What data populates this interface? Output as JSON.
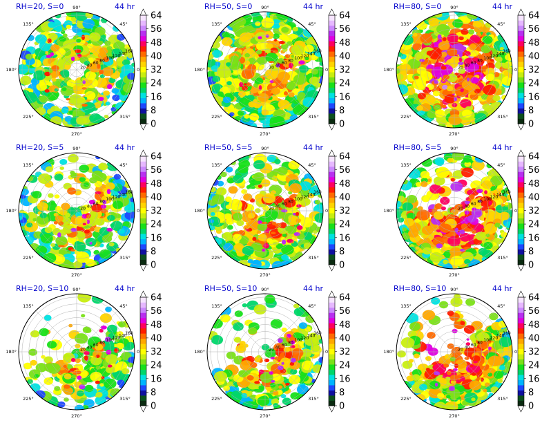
{
  "colorbar": {
    "ticks": [
      "0",
      "8",
      "16",
      "24",
      "32",
      "40",
      "48",
      "56",
      "64"
    ],
    "colors": [
      "#0a2a10",
      "#0b4f1e",
      "#1010a0",
      "#1e48ff",
      "#00b4ff",
      "#00e2e0",
      "#00d66a",
      "#18e01a",
      "#7ae018",
      "#c8ee10",
      "#ffff00",
      "#ffd400",
      "#ffa800",
      "#ff6a00",
      "#ff1e00",
      "#ff0060",
      "#e000e0",
      "#b830f0",
      "#cc88ff",
      "#e6b8ff",
      "#f6e4ff"
    ]
  },
  "axes": {
    "angle_labels": [
      "90°",
      "45°",
      "0°",
      "315°",
      "270°",
      "225°",
      "180°",
      "135°"
    ],
    "radial_labels": [
      "20",
      "40",
      "60",
      "80",
      "100",
      "120",
      "140",
      "160"
    ]
  },
  "chart_data": [
    {
      "type": "heatmap",
      "title": "RH=20, S=0",
      "time": "44 hr",
      "intensity": 0.45,
      "coverage": 0.75,
      "eye": 0.2
    },
    {
      "type": "heatmap",
      "title": "RH=50, S=0",
      "time": "44 hr",
      "intensity": 0.55,
      "coverage": 0.98,
      "eye": 0.12
    },
    {
      "type": "heatmap",
      "title": "RH=80, S=0",
      "time": "44 hr",
      "intensity": 0.8,
      "coverage": 0.97,
      "eye": 0.1
    },
    {
      "type": "heatmap",
      "title": "RH=20, S=5",
      "time": "44 hr",
      "intensity": 0.5,
      "coverage": 0.45
    },
    {
      "type": "heatmap",
      "title": "RH=50, S=5",
      "time": "44 hr",
      "intensity": 0.6,
      "coverage": 0.65
    },
    {
      "type": "heatmap",
      "title": "RH=80, S=5",
      "time": "44 hr",
      "intensity": 0.75,
      "coverage": 0.8
    },
    {
      "type": "heatmap",
      "title": "RH=20, S=10",
      "time": "44 hr",
      "intensity": 0.5,
      "coverage": 0.28
    },
    {
      "type": "heatmap",
      "title": "RH=50, S=10",
      "time": "44 hr",
      "intensity": 0.55,
      "coverage": 0.4
    },
    {
      "type": "heatmap",
      "title": "RH=80, S=10",
      "time": "44 hr",
      "intensity": 0.7,
      "coverage": 0.6
    }
  ]
}
